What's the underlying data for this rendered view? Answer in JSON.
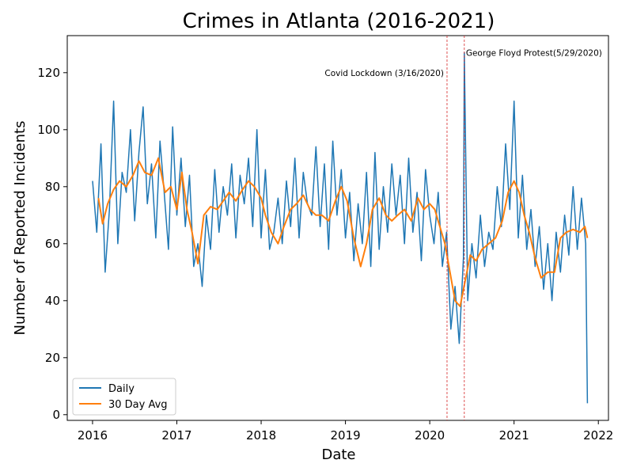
{
  "chart_data": {
    "type": "line",
    "title": "Crimes in Atlanta (2016-2021)",
    "xlabel": "Date",
    "ylabel": "Number of Reported Incidents",
    "xlim": [
      2015.7,
      2022.12
    ],
    "ylim": [
      -2,
      133
    ],
    "x_ticks": [
      {
        "value": 2016,
        "label": "2016"
      },
      {
        "value": 2017,
        "label": "2017"
      },
      {
        "value": 2018,
        "label": "2018"
      },
      {
        "value": 2019,
        "label": "2019"
      },
      {
        "value": 2020,
        "label": "2020"
      },
      {
        "value": 2021,
        "label": "2021"
      },
      {
        "value": 2022,
        "label": "2022"
      }
    ],
    "y_ticks": [
      {
        "value": 0,
        "label": "0"
      },
      {
        "value": 20,
        "label": "20"
      },
      {
        "value": 40,
        "label": "40"
      },
      {
        "value": 60,
        "label": "60"
      },
      {
        "value": 80,
        "label": "80"
      },
      {
        "value": 100,
        "label": "100"
      },
      {
        "value": 120,
        "label": "120"
      }
    ],
    "grid": false,
    "legend_position": "lower-left",
    "series": [
      {
        "name": "Daily",
        "color": "#1f77b4",
        "x": [
          2016.0,
          2016.05,
          2016.1,
          2016.15,
          2016.2,
          2016.25,
          2016.3,
          2016.35,
          2016.4,
          2016.45,
          2016.5,
          2016.55,
          2016.6,
          2016.65,
          2016.7,
          2016.75,
          2016.8,
          2016.85,
          2016.9,
          2016.95,
          2017.0,
          2017.05,
          2017.1,
          2017.15,
          2017.2,
          2017.25,
          2017.3,
          2017.35,
          2017.4,
          2017.45,
          2017.5,
          2017.55,
          2017.6,
          2017.65,
          2017.7,
          2017.75,
          2017.8,
          2017.85,
          2017.9,
          2017.95,
          2018.0,
          2018.05,
          2018.1,
          2018.15,
          2018.2,
          2018.25,
          2018.3,
          2018.35,
          2018.4,
          2018.45,
          2018.5,
          2018.55,
          2018.6,
          2018.65,
          2018.7,
          2018.75,
          2018.8,
          2018.85,
          2018.9,
          2018.95,
          2019.0,
          2019.05,
          2019.1,
          2019.15,
          2019.2,
          2019.25,
          2019.3,
          2019.35,
          2019.4,
          2019.45,
          2019.5,
          2019.55,
          2019.6,
          2019.65,
          2019.7,
          2019.75,
          2019.8,
          2019.85,
          2019.9,
          2019.95,
          2020.0,
          2020.05,
          2020.1,
          2020.15,
          2020.2,
          2020.25,
          2020.3,
          2020.35,
          2020.4,
          2020.41,
          2020.45,
          2020.5,
          2020.55,
          2020.6,
          2020.65,
          2020.7,
          2020.75,
          2020.8,
          2020.85,
          2020.9,
          2020.95,
          2021.0,
          2021.05,
          2021.1,
          2021.15,
          2021.2,
          2021.25,
          2021.3,
          2021.35,
          2021.4,
          2021.45,
          2021.5,
          2021.55,
          2021.6,
          2021.65,
          2021.7,
          2021.75,
          2021.8,
          2021.85,
          2021.87
        ],
        "y": [
          82,
          64,
          95,
          50,
          72,
          110,
          60,
          85,
          78,
          100,
          68,
          92,
          108,
          74,
          88,
          62,
          96,
          78,
          58,
          101,
          70,
          90,
          66,
          84,
          52,
          60,
          45,
          70,
          58,
          86,
          64,
          80,
          70,
          88,
          62,
          84,
          74,
          90,
          66,
          100,
          62,
          86,
          58,
          64,
          76,
          60,
          82,
          66,
          90,
          62,
          85,
          74,
          70,
          94,
          66,
          88,
          58,
          96,
          70,
          86,
          62,
          78,
          54,
          74,
          60,
          85,
          52,
          92,
          58,
          80,
          64,
          88,
          70,
          84,
          60,
          90,
          64,
          78,
          54,
          86,
          70,
          60,
          78,
          52,
          64,
          30,
          45,
          25,
          55,
          127,
          40,
          60,
          48,
          70,
          52,
          64,
          58,
          80,
          66,
          95,
          72,
          110,
          62,
          84,
          58,
          72,
          52,
          66,
          44,
          60,
          40,
          64,
          50,
          70,
          56,
          80,
          58,
          76,
          60,
          4
        ]
      },
      {
        "name": "30 Day Avg",
        "color": "#ff7f0e",
        "x": [
          2016.07,
          2016.12,
          2016.18,
          2016.25,
          2016.32,
          2016.4,
          2016.48,
          2016.55,
          2016.62,
          2016.7,
          2016.78,
          2016.86,
          2016.93,
          2017.0,
          2017.06,
          2017.12,
          2017.18,
          2017.25,
          2017.32,
          2017.4,
          2017.48,
          2017.55,
          2017.62,
          2017.7,
          2017.78,
          2017.85,
          2017.92,
          2018.0,
          2018.05,
          2018.12,
          2018.2,
          2018.27,
          2018.35,
          2018.42,
          2018.5,
          2018.58,
          2018.65,
          2018.72,
          2018.8,
          2018.88,
          2018.95,
          2019.02,
          2019.1,
          2019.18,
          2019.25,
          2019.32,
          2019.4,
          2019.48,
          2019.55,
          2019.62,
          2019.7,
          2019.78,
          2019.86,
          2019.93,
          2020.0,
          2020.06,
          2020.12,
          2020.18,
          2020.24,
          2020.3,
          2020.36,
          2020.42,
          2020.48,
          2020.55,
          2020.62,
          2020.7,
          2020.78,
          2020.86,
          2020.93,
          2021.0,
          2021.06,
          2021.12,
          2021.18,
          2021.25,
          2021.32,
          2021.4,
          2021.48,
          2021.55,
          2021.62,
          2021.7,
          2021.78,
          2021.84,
          2021.87
        ],
        "y": [
          76,
          67,
          74,
          79,
          82,
          80,
          84,
          89,
          85,
          84,
          90,
          78,
          80,
          72,
          85,
          72,
          64,
          53,
          70,
          73,
          72,
          75,
          78,
          75,
          79,
          82,
          80,
          76,
          70,
          64,
          60,
          66,
          72,
          74,
          77,
          72,
          70,
          70,
          68,
          75,
          80,
          75,
          62,
          52,
          60,
          72,
          76,
          70,
          68,
          70,
          72,
          68,
          76,
          72,
          74,
          72,
          66,
          60,
          50,
          40,
          38,
          47,
          56,
          54,
          58,
          60,
          62,
          68,
          78,
          82,
          78,
          70,
          64,
          55,
          48,
          50,
          50,
          62,
          64,
          65,
          64,
          66,
          62
        ]
      }
    ],
    "annotations": [
      {
        "x": 2020.205,
        "label": "Covid Lockdown (3/16/2020)",
        "color": "#d62728",
        "style": "dashed",
        "label_side": "left"
      },
      {
        "x": 2020.41,
        "label": "George Floyd Protest(5/29/2020)",
        "color": "#d62728",
        "style": "dashed",
        "label_side": "right"
      }
    ]
  }
}
